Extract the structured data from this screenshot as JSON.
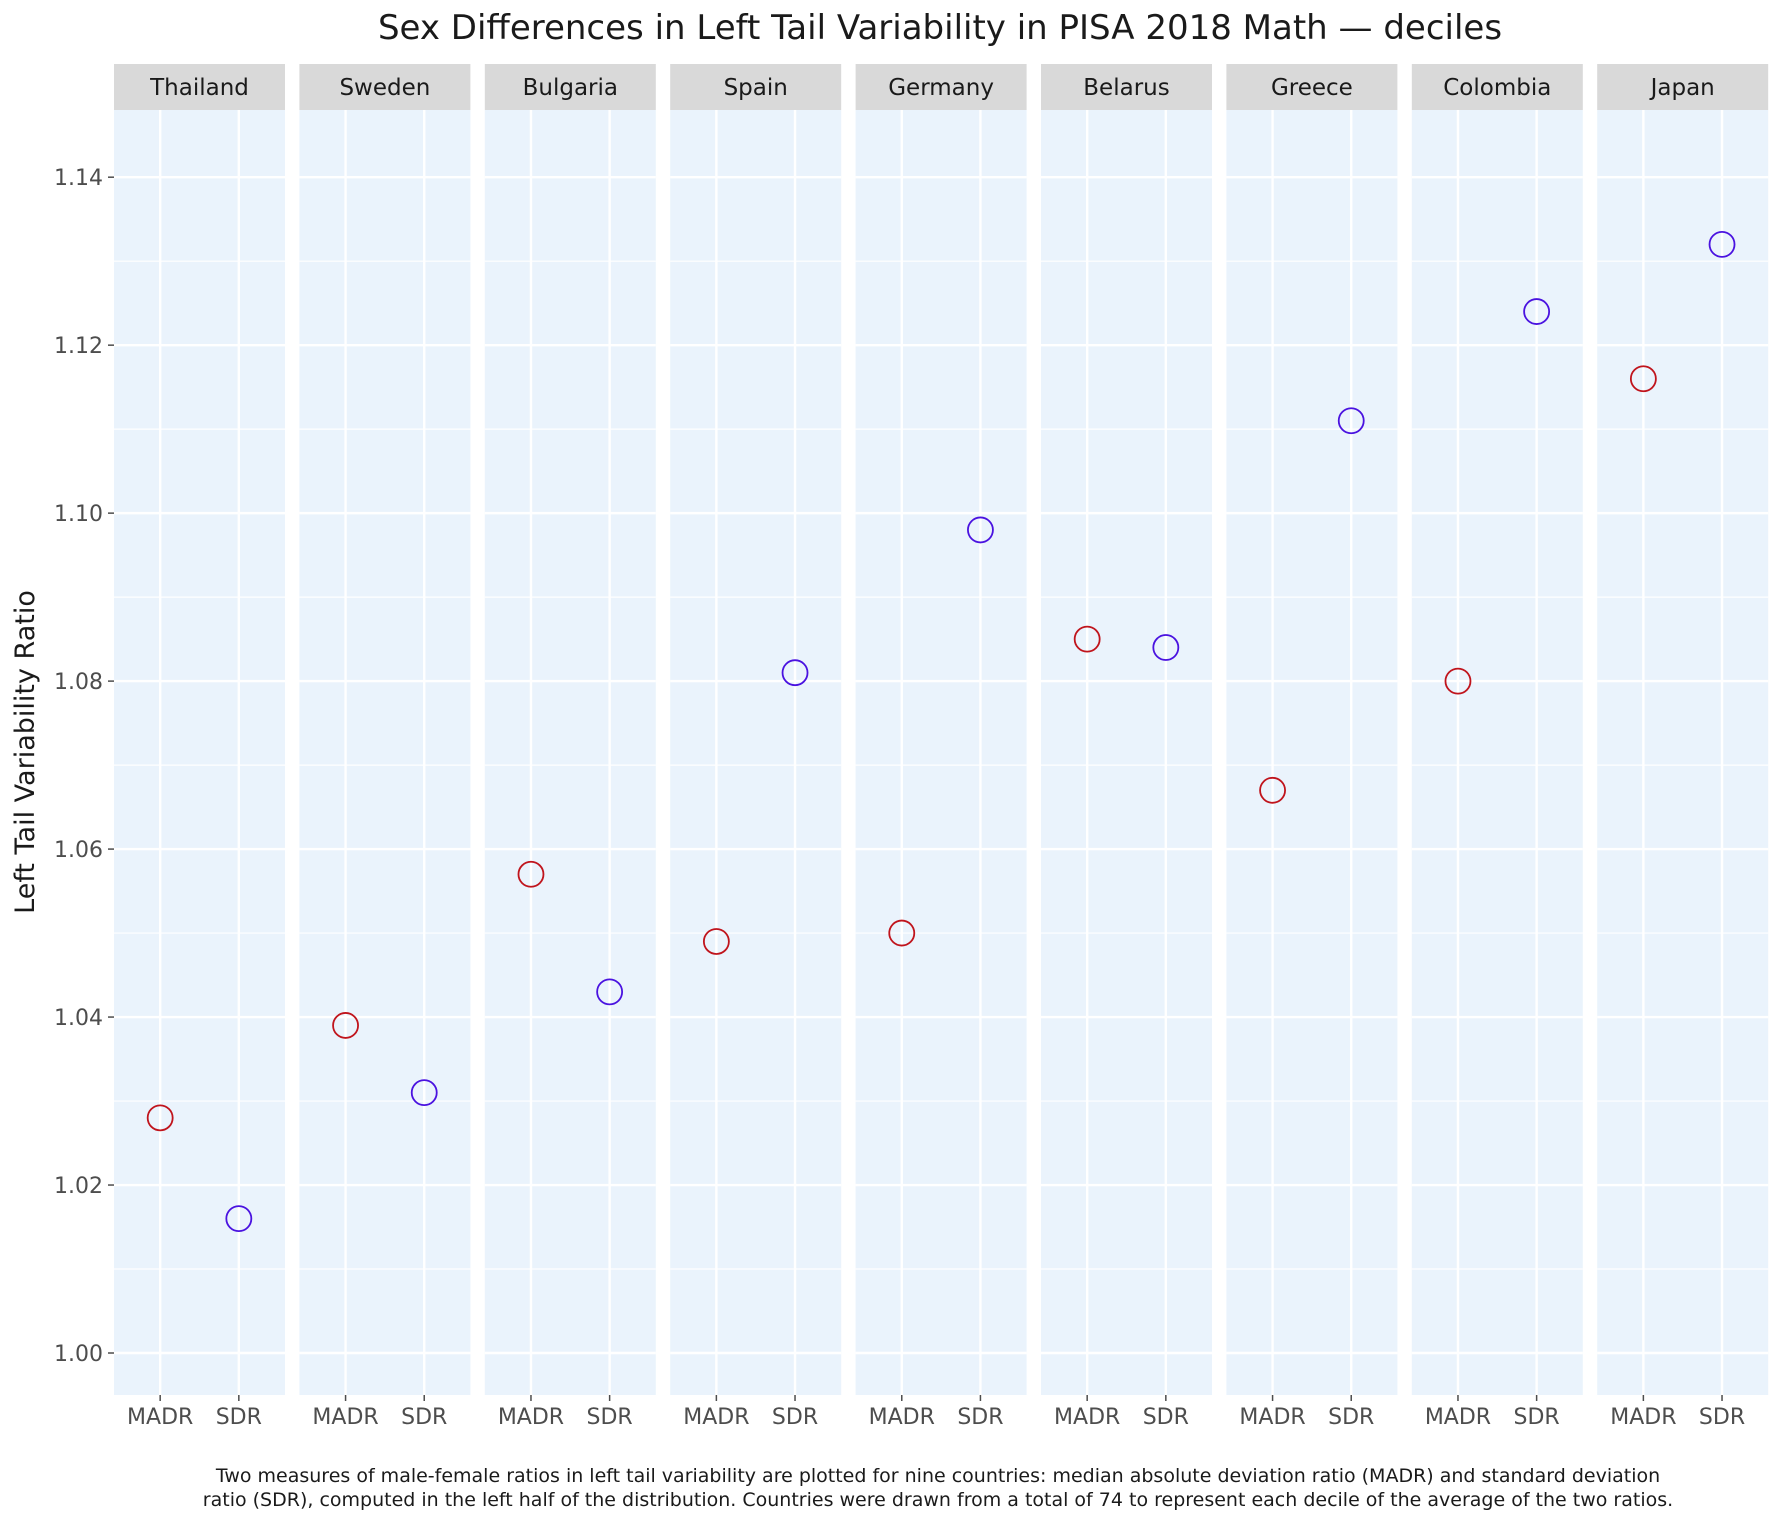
{
  "chart_data": {
    "type": "scatter",
    "title": "Sex Differences in Left Tail Variability in PISA 2018 Math — deciles",
    "ylabel": "Left Tail Variability Ratio",
    "xlabel": "",
    "ylim": [
      0.995,
      1.148
    ],
    "yticks": [
      "1.00",
      "1.02",
      "1.04",
      "1.06",
      "1.08",
      "1.10",
      "1.12",
      "1.14"
    ],
    "categories": [
      "MADR",
      "SDR"
    ],
    "point_colors": {
      "MADR": "#c0141c",
      "SDR": "#4a12e0"
    },
    "panel_background": "#eaf3fc",
    "strip_background": "#d9d9d9",
    "grid": true,
    "legend": "none",
    "panels": [
      {
        "country": "Thailand",
        "MADR": 1.028,
        "SDR": 1.016
      },
      {
        "country": "Sweden",
        "MADR": 1.039,
        "SDR": 1.031
      },
      {
        "country": "Bulgaria",
        "MADR": 1.057,
        "SDR": 1.043
      },
      {
        "country": "Spain",
        "MADR": 1.049,
        "SDR": 1.081
      },
      {
        "country": "Germany",
        "MADR": 1.05,
        "SDR": 1.098
      },
      {
        "country": "Belarus",
        "MADR": 1.085,
        "SDR": 1.084
      },
      {
        "country": "Greece",
        "MADR": 1.067,
        "SDR": 1.111
      },
      {
        "country": "Colombia",
        "MADR": 1.08,
        "SDR": 1.124
      },
      {
        "country": "Japan",
        "MADR": 1.116,
        "SDR": 1.132
      }
    ],
    "caption": [
      "Two measures of male-female ratios in left tail variability are plotted for nine countries: median absolute deviation ratio (MADR) and standard deviation",
      "ratio (SDR), computed in the left half of the distribution. Countries were drawn from a total of 74 to represent each decile of the average of the two ratios."
    ]
  }
}
